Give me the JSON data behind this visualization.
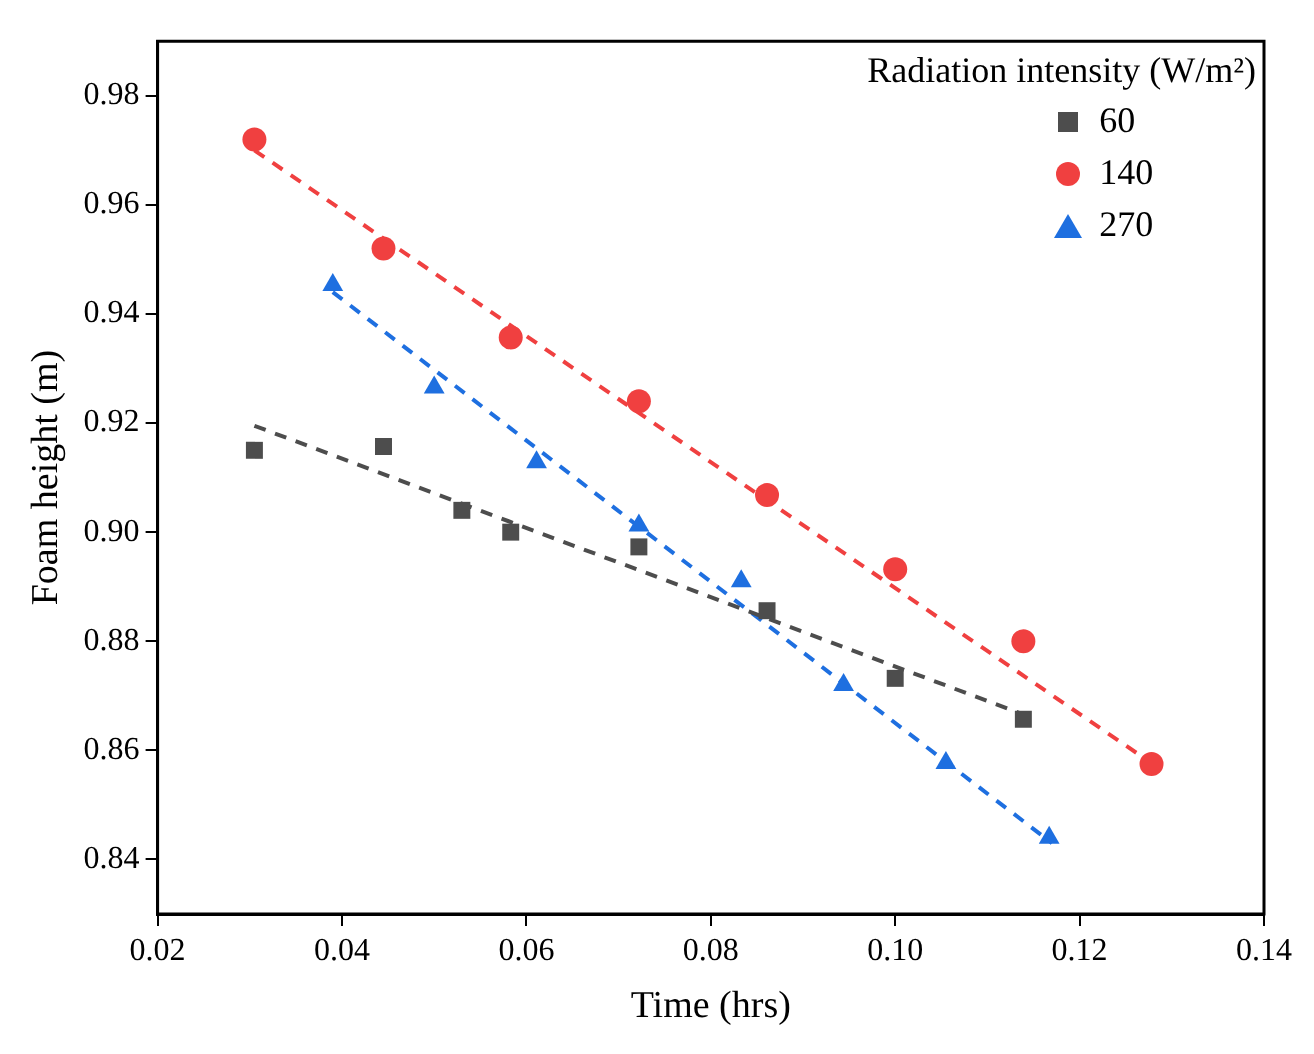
{
  "chart_data": {
    "type": "scatter",
    "xlabel": "Time (hrs)",
    "ylabel": "Foam height (m)",
    "legend_title": "Radiation intensity (W/m²)",
    "xlim": [
      0.02,
      0.14
    ],
    "xticks": [
      0.02,
      0.04,
      0.06,
      0.08,
      {
        "value": 0.1,
        "label": "0.10"
      },
      0.12,
      0.14
    ],
    "ylim": [
      0.83,
      0.99
    ],
    "yticks": [
      0.84,
      0.86,
      0.88,
      {
        "value": 0.9,
        "label": "0.90"
      },
      0.92,
      0.94,
      0.96,
      0.98
    ],
    "grid": false,
    "legend": "top right",
    "series": [
      {
        "name": "60",
        "type": "scatter",
        "marker": "square",
        "color": "#4d4d4d",
        "x": [
          0.0305,
          0.0445,
          0.053,
          0.0583,
          0.0722,
          0.0861,
          0.1,
          0.1139
        ],
        "values": [
          0.915,
          0.9157,
          0.904,
          0.9,
          0.8973,
          0.8856,
          0.8732,
          0.8657
        ]
      },
      {
        "name": "140",
        "type": "scatter",
        "marker": "circle",
        "color": "#f04040",
        "x": [
          0.0305,
          0.0445,
          0.0583,
          0.0722,
          0.0861,
          0.1,
          0.1139,
          0.1278
        ],
        "values": [
          0.972,
          0.952,
          0.9357,
          0.924,
          0.9068,
          0.8932,
          0.88,
          0.8575
        ]
      },
      {
        "name": "270",
        "type": "scatter",
        "marker": "triangle",
        "color": "#1e6fe0",
        "x": [
          0.039,
          0.05,
          0.0611,
          0.0722,
          0.0833,
          0.0944,
          0.1055,
          0.1167
        ],
        "values": [
          0.9453,
          0.9265,
          0.9128,
          0.9012,
          0.891,
          0.872,
          0.8577,
          0.844
        ]
      },
      {
        "type": "line",
        "line_style": "dashed",
        "marker": "none",
        "color": "#4d4d4d",
        "x": [
          0.0305,
          0.114
        ],
        "values": [
          0.9195,
          0.8665
        ]
      },
      {
        "type": "line",
        "line_style": "dashed",
        "marker": "none",
        "color": "#f04040",
        "x": [
          0.0305,
          0.1275
        ],
        "values": [
          0.97,
          0.858
        ]
      },
      {
        "type": "line",
        "line_style": "dashed",
        "marker": "none",
        "color": "#1e6fe0",
        "x": [
          0.039,
          0.117
        ],
        "values": [
          0.944,
          0.843
        ]
      }
    ]
  }
}
